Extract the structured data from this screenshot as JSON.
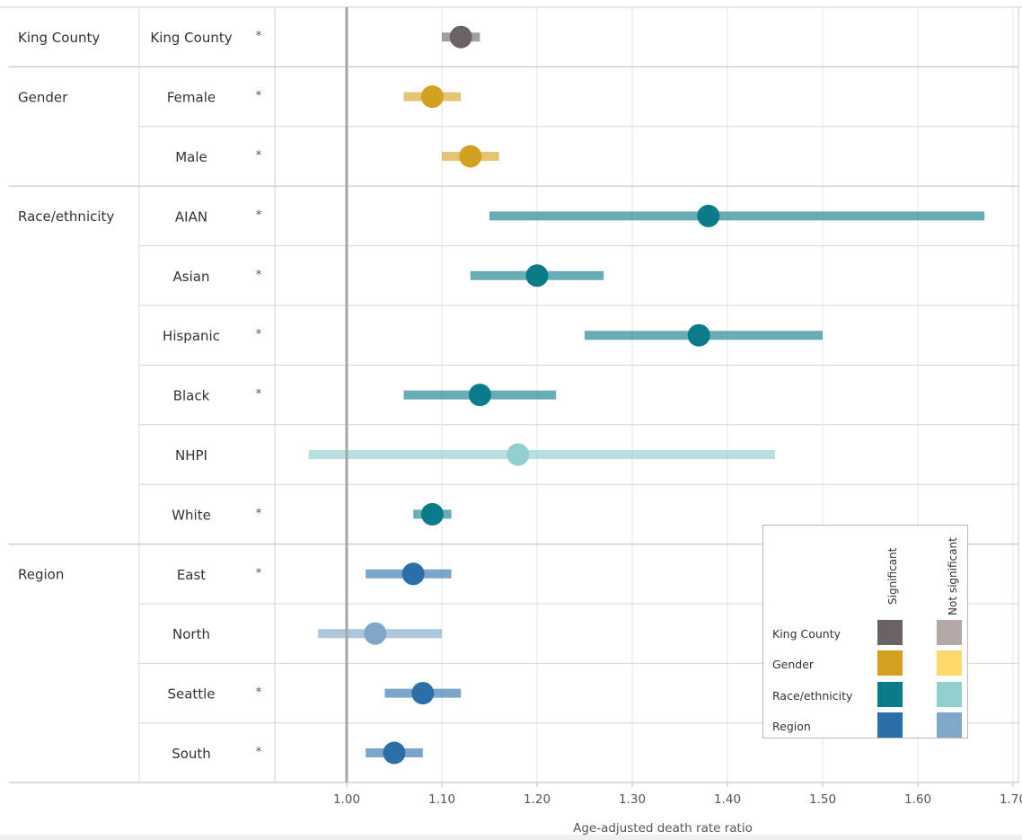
{
  "chart_data": {
    "type": "forest",
    "xlabel": "Age-adjusted death rate ratio",
    "x_ticks": [
      "1.00",
      "1.10",
      "1.20",
      "1.30",
      "1.40",
      "1.50",
      "1.60",
      "1.70"
    ],
    "x_tick_values": [
      1.0,
      1.1,
      1.2,
      1.3,
      1.4,
      1.5,
      1.6,
      1.7
    ],
    "xlim": [
      0.93,
      1.71
    ],
    "reference_line": 1.0,
    "grid": true,
    "groups": [
      {
        "name": "King County",
        "rows": [
          {
            "label": "King County",
            "sig": "*",
            "est": 1.12,
            "lo": 1.1,
            "hi": 1.14,
            "category": "King County",
            "significant": true
          }
        ]
      },
      {
        "name": "Gender",
        "rows": [
          {
            "label": "Female",
            "sig": "*",
            "est": 1.09,
            "lo": 1.06,
            "hi": 1.12,
            "category": "Gender",
            "significant": true
          },
          {
            "label": "Male",
            "sig": "*",
            "est": 1.13,
            "lo": 1.1,
            "hi": 1.16,
            "category": "Gender",
            "significant": true
          }
        ]
      },
      {
        "name": "Race/ethnicity",
        "rows": [
          {
            "label": "AIAN",
            "sig": "*",
            "est": 1.38,
            "lo": 1.15,
            "hi": 1.67,
            "category": "Race/ethnicity",
            "significant": true
          },
          {
            "label": "Asian",
            "sig": "*",
            "est": 1.2,
            "lo": 1.13,
            "hi": 1.27,
            "category": "Race/ethnicity",
            "significant": true
          },
          {
            "label": "Hispanic",
            "sig": "*",
            "est": 1.37,
            "lo": 1.25,
            "hi": 1.5,
            "category": "Race/ethnicity",
            "significant": true
          },
          {
            "label": "Black",
            "sig": "*",
            "est": 1.14,
            "lo": 1.06,
            "hi": 1.22,
            "category": "Race/ethnicity",
            "significant": true
          },
          {
            "label": "NHPI",
            "sig": "",
            "est": 1.18,
            "lo": 0.96,
            "hi": 1.45,
            "category": "Race/ethnicity",
            "significant": false
          },
          {
            "label": "White",
            "sig": "*",
            "est": 1.09,
            "lo": 1.07,
            "hi": 1.11,
            "category": "Race/ethnicity",
            "significant": true
          }
        ]
      },
      {
        "name": "Region",
        "rows": [
          {
            "label": "East",
            "sig": "*",
            "est": 1.07,
            "lo": 1.02,
            "hi": 1.11,
            "category": "Region",
            "significant": true
          },
          {
            "label": "North",
            "sig": "",
            "est": 1.03,
            "lo": 0.97,
            "hi": 1.1,
            "category": "Region",
            "significant": false
          },
          {
            "label": "Seattle",
            "sig": "*",
            "est": 1.08,
            "lo": 1.04,
            "hi": 1.12,
            "category": "Region",
            "significant": true
          },
          {
            "label": "South",
            "sig": "*",
            "est": 1.05,
            "lo": 1.02,
            "hi": 1.08,
            "category": "Region",
            "significant": true
          }
        ]
      }
    ],
    "colors": {
      "King County": {
        "significant": "#6b6263",
        "not_significant": "#b3a8a5"
      },
      "Gender": {
        "significant": "#d4a020",
        "not_significant": "#fcd96a"
      },
      "Race/ethnicity": {
        "significant": "#0b7b89",
        "not_significant": "#92cfcf"
      },
      "Region": {
        "significant": "#2a6fa8",
        "not_significant": "#7fa7c9"
      }
    }
  },
  "legend": {
    "col_significant": "Significant",
    "col_not_significant": "Not significant",
    "rows": [
      "King County",
      "Gender",
      "Race/ethnicity",
      "Region"
    ]
  }
}
